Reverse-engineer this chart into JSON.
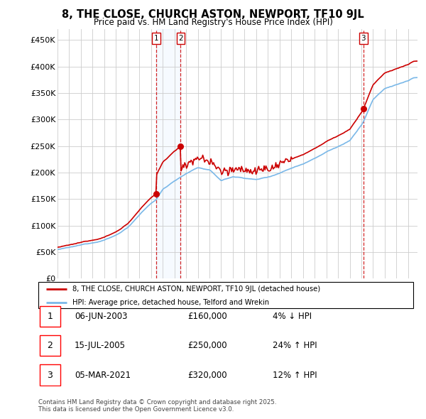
{
  "title": "8, THE CLOSE, CHURCH ASTON, NEWPORT, TF10 9JL",
  "subtitle": "Price paid vs. HM Land Registry's House Price Index (HPI)",
  "ylim": [
    0,
    470000
  ],
  "yticks": [
    0,
    50000,
    100000,
    150000,
    200000,
    250000,
    300000,
    350000,
    400000,
    450000
  ],
  "ytick_labels": [
    "£0",
    "£50K",
    "£100K",
    "£150K",
    "£200K",
    "£250K",
    "£300K",
    "£350K",
    "£400K",
    "£450K"
  ],
  "xlim_start": 1995.0,
  "xlim_end": 2025.8,
  "sale_dates": [
    2003.43,
    2005.54,
    2021.17
  ],
  "sale_prices": [
    160000,
    250000,
    320000
  ],
  "sale_labels": [
    "1",
    "2",
    "3"
  ],
  "hpi_line_color": "#7ab8e8",
  "price_line_color": "#cc0000",
  "vline_color": "#cc0000",
  "shade_color": "#ddeeff",
  "legend_entry1": "8, THE CLOSE, CHURCH ASTON, NEWPORT, TF10 9JL (detached house)",
  "legend_entry2": "HPI: Average price, detached house, Telford and Wrekin",
  "table_data": [
    {
      "label": "1",
      "date": "06-JUN-2003",
      "price": "£160,000",
      "hpi": "4% ↓ HPI"
    },
    {
      "label": "2",
      "date": "15-JUL-2005",
      "price": "£250,000",
      "hpi": "24% ↑ HPI"
    },
    {
      "label": "3",
      "date": "05-MAR-2021",
      "price": "£320,000",
      "hpi": "12% ↑ HPI"
    }
  ],
  "footnote": "Contains HM Land Registry data © Crown copyright and database right 2025.\nThis data is licensed under the Open Government Licence v3.0.",
  "background_color": "#ffffff",
  "plot_bg_color": "#ffffff",
  "grid_color": "#cccccc"
}
